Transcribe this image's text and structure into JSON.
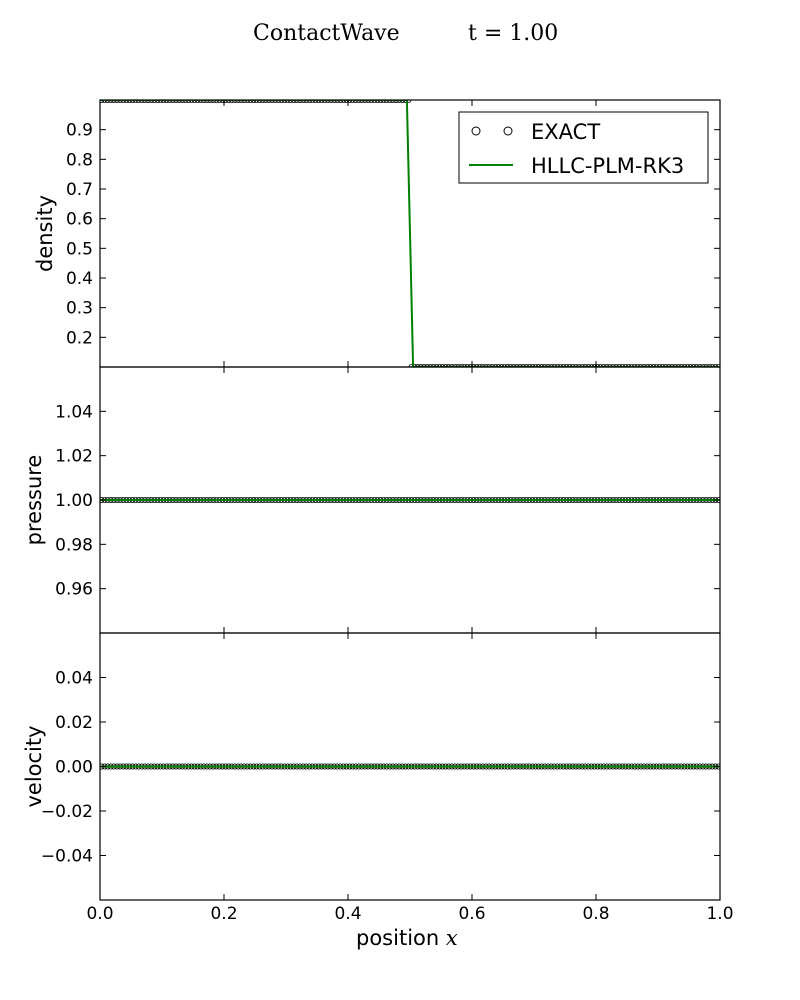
{
  "figure": {
    "title_left": "ContactWave",
    "title_right": "t = 1.00"
  },
  "chart_data": [
    {
      "type": "line",
      "ylabel": "density",
      "xlim": [
        0.0,
        1.0
      ],
      "ylim": [
        0.1,
        1.0
      ],
      "yticks": [
        0.2,
        0.3,
        0.4,
        0.5,
        0.6,
        0.7,
        0.8,
        0.9
      ],
      "ytick_labels": [
        "0.2",
        "0.3",
        "0.4",
        "0.5",
        "0.6",
        "0.7",
        "0.8",
        "0.9"
      ],
      "legend": {
        "position": "top-right",
        "entries": [
          "EXACT",
          "HLLC-PLM-RK3"
        ]
      },
      "series": [
        {
          "name": "EXACT",
          "style": "markers",
          "color": "#000000",
          "x": [
            0.0,
            0.5,
            0.5,
            1.0
          ],
          "y": [
            1.0,
            1.0,
            0.1,
            0.1
          ]
        },
        {
          "name": "HLLC-PLM-RK3",
          "style": "line",
          "color": "#008000",
          "x": [
            0.0,
            0.495,
            0.505,
            1.0
          ],
          "y": [
            1.0,
            1.0,
            0.1,
            0.1
          ]
        }
      ]
    },
    {
      "type": "line",
      "ylabel": "pressure",
      "xlim": [
        0.0,
        1.0
      ],
      "ylim": [
        0.94,
        1.06
      ],
      "yticks": [
        0.96,
        0.98,
        1.0,
        1.02,
        1.04
      ],
      "ytick_labels": [
        "0.96",
        "0.98",
        "1.00",
        "1.02",
        "1.04"
      ],
      "series": [
        {
          "name": "EXACT",
          "style": "markers",
          "color": "#000000",
          "x": [
            0.0,
            1.0
          ],
          "y": [
            1.0,
            1.0
          ]
        },
        {
          "name": "HLLC-PLM-RK3",
          "style": "line",
          "color": "#008000",
          "x": [
            0.0,
            1.0
          ],
          "y": [
            1.0,
            1.0
          ]
        }
      ]
    },
    {
      "type": "line",
      "ylabel": "velocity",
      "xlabel": "position",
      "xlabel_var": "x",
      "xlim": [
        0.0,
        1.0
      ],
      "ylim": [
        -0.06,
        0.06
      ],
      "xticks": [
        0.0,
        0.2,
        0.4,
        0.6,
        0.8,
        1.0
      ],
      "xtick_labels": [
        "0.0",
        "0.2",
        "0.4",
        "0.6",
        "0.8",
        "1.0"
      ],
      "yticks": [
        -0.04,
        -0.02,
        0.0,
        0.02,
        0.04
      ],
      "ytick_labels": [
        "−0.04",
        "−0.02",
        "0.00",
        "0.02",
        "0.04"
      ],
      "series": [
        {
          "name": "EXACT",
          "style": "markers",
          "color": "#000000",
          "x": [
            0.0,
            1.0
          ],
          "y": [
            0.0,
            0.0
          ]
        },
        {
          "name": "HLLC-PLM-RK3",
          "style": "line",
          "color": "#008000",
          "x": [
            0.0,
            1.0
          ],
          "y": [
            0.0,
            0.0
          ]
        }
      ]
    }
  ]
}
